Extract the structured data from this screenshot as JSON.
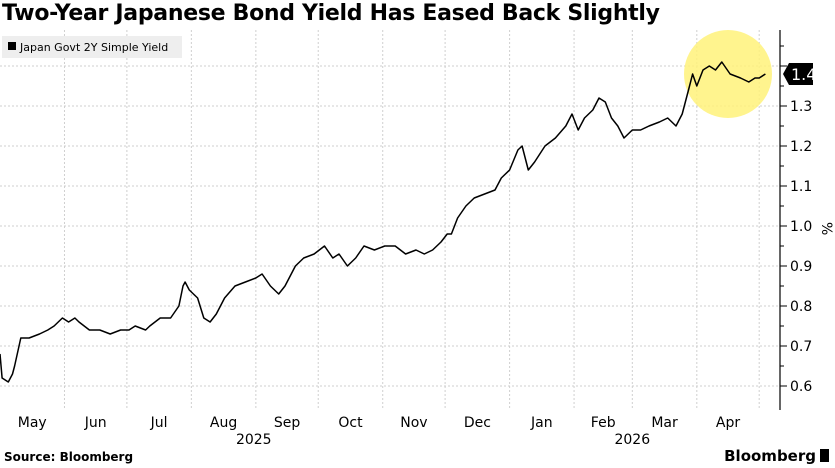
{
  "chart_data": {
    "type": "line",
    "title": "Two-Year Japanese Bond Yield Has Eased Back Slightly",
    "source": "Source: Bloomberg",
    "brand": "Bloomberg",
    "legend": {
      "label": "Japan Govt 2Y Simple Yield",
      "placement": "top-left"
    },
    "ylabel": "%",
    "ylim": [
      0.54,
      1.49
    ],
    "yticks": [
      "0.6",
      "0.7",
      "0.8",
      "0.9",
      "1.0",
      "1.1",
      "1.2",
      "1.3",
      "1.4"
    ],
    "current_value_label": "1.4",
    "x_origin": "2025-05-01",
    "x_unit": "days since origin",
    "xlim": [
      0,
      375
    ],
    "month_ticks": [
      {
        "label": "May",
        "start": 0
      },
      {
        "label": "Jun",
        "start": 31
      },
      {
        "label": "Jul",
        "start": 61
      },
      {
        "label": "Aug",
        "start": 92
      },
      {
        "label": "Sep",
        "start": 123
      },
      {
        "label": "Oct",
        "start": 153
      },
      {
        "label": "Nov",
        "start": 184
      },
      {
        "label": "Dec",
        "start": 214
      },
      {
        "label": "Jan",
        "start": 245
      },
      {
        "label": "Feb",
        "start": 276
      },
      {
        "label": "Mar",
        "start": 304
      },
      {
        "label": "Apr",
        "start": 335
      }
    ],
    "end_tick": 365,
    "year_labels": [
      {
        "label": "2025",
        "at": 122
      },
      {
        "label": "2026",
        "at": 304
      }
    ],
    "highlight": {
      "color": "#fff27a",
      "center_day": 350,
      "center_value": 1.38
    },
    "series": [
      {
        "name": "Japan Govt 2Y Simple Yield",
        "color": "#000000",
        "x": [
          0,
          1,
          4,
          6,
          7,
          10,
          14,
          19,
          23,
          26,
          30,
          33,
          36,
          38,
          43,
          48,
          53,
          58,
          62,
          65,
          70,
          72,
          77,
          82,
          86,
          88,
          89,
          91,
          95,
          98,
          101,
          104,
          108,
          113,
          118,
          123,
          126,
          130,
          134,
          137,
          142,
          146,
          151,
          156,
          160,
          163,
          167,
          171,
          175,
          180,
          185,
          190,
          195,
          200,
          204,
          208,
          212,
          215,
          217,
          220,
          224,
          228,
          233,
          238,
          241,
          245,
          249,
          251,
          254,
          257,
          262,
          267,
          272,
          275,
          278,
          281,
          285,
          288,
          291,
          294,
          297,
          300,
          304,
          308,
          312,
          317,
          321,
          325,
          328,
          331,
          333,
          335,
          338,
          341,
          344,
          347,
          351,
          356,
          360,
          363,
          365,
          368
        ],
        "values": [
          0.68,
          0.62,
          0.61,
          0.63,
          0.65,
          0.72,
          0.72,
          0.73,
          0.74,
          0.75,
          0.77,
          0.76,
          0.77,
          0.76,
          0.74,
          0.74,
          0.73,
          0.74,
          0.74,
          0.75,
          0.74,
          0.75,
          0.77,
          0.77,
          0.8,
          0.85,
          0.86,
          0.84,
          0.82,
          0.77,
          0.76,
          0.78,
          0.82,
          0.85,
          0.86,
          0.87,
          0.88,
          0.85,
          0.83,
          0.85,
          0.9,
          0.92,
          0.93,
          0.95,
          0.92,
          0.93,
          0.9,
          0.92,
          0.95,
          0.94,
          0.95,
          0.95,
          0.93,
          0.94,
          0.93,
          0.94,
          0.96,
          0.98,
          0.98,
          1.02,
          1.05,
          1.07,
          1.08,
          1.09,
          1.12,
          1.14,
          1.19,
          1.2,
          1.14,
          1.16,
          1.2,
          1.22,
          1.25,
          1.28,
          1.24,
          1.27,
          1.29,
          1.32,
          1.31,
          1.27,
          1.25,
          1.22,
          1.24,
          1.24,
          1.25,
          1.26,
          1.27,
          1.25,
          1.28,
          1.34,
          1.38,
          1.35,
          1.39,
          1.4,
          1.39,
          1.41,
          1.38,
          1.37,
          1.36,
          1.37,
          1.37,
          1.38
        ]
      }
    ]
  }
}
